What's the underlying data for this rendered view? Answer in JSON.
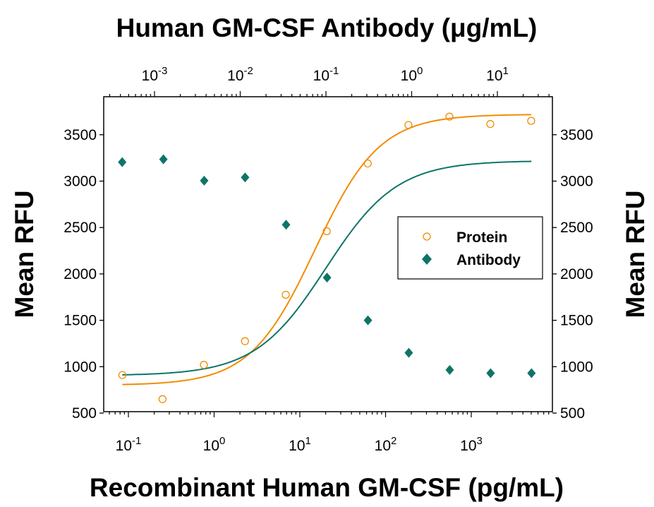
{
  "chart_data": {
    "type": "scatter",
    "title": "Human GM-CSF Antibody (μg/mL)",
    "xlabel": "Recombinant Human GM-CSF (pg/mL)",
    "x2label": "Human GM-CSF Antibody (μg/mL)",
    "ylabel": "Mean RFU",
    "y2label": "Mean RFU",
    "x_scale": "log",
    "xlim": [
      0.05,
      9000
    ],
    "x2lim": [
      0.00018,
      32
    ],
    "ylim": [
      500,
      3850
    ],
    "yticks": [
      500,
      1000,
      1500,
      2000,
      2500,
      3000,
      3500
    ],
    "xticks": [
      {
        "base": "10",
        "exp": "-1",
        "v": 0.1
      },
      {
        "base": "10",
        "exp": "0",
        "v": 1
      },
      {
        "base": "10",
        "exp": "1",
        "v": 10
      },
      {
        "base": "10",
        "exp": "2",
        "v": 100
      },
      {
        "base": "10",
        "exp": "3",
        "v": 1000
      }
    ],
    "x2ticks": [
      {
        "base": "10",
        "exp": "-3",
        "v": 0.001
      },
      {
        "base": "10",
        "exp": "-2",
        "v": 0.01
      },
      {
        "base": "10",
        "exp": "-1",
        "v": 0.1
      },
      {
        "base": "10",
        "exp": "0",
        "v": 1
      },
      {
        "base": "10",
        "exp": "1",
        "v": 10
      }
    ],
    "grid": false,
    "legend_placement": "right-middle",
    "series": [
      {
        "name": "Protein",
        "axis": "bottom",
        "marker": "open-circle",
        "color": "#f28c00",
        "x": [
          0.085,
          0.25,
          0.76,
          2.29,
          6.86,
          20.6,
          62,
          185,
          556,
          1667,
          5000
        ],
        "y": [
          910,
          650,
          1020,
          1275,
          1775,
          2460,
          3190,
          3605,
          3695,
          3615,
          3650
        ],
        "fit": {
          "bottom": 800,
          "top": 3720,
          "ec50": 15,
          "hill": 1.15
        }
      },
      {
        "name": "Antibody",
        "axis": "top",
        "marker": "filled-diamond",
        "color": "#0e7468",
        "x": [
          0.00042,
          0.00127,
          0.0038,
          0.0114,
          0.0343,
          0.103,
          0.309,
          0.926,
          2.78,
          8.33,
          25
        ],
        "y": [
          3205,
          3235,
          3005,
          3040,
          2530,
          1960,
          1500,
          1150,
          965,
          930,
          930
        ],
        "fit": {
          "bottom": 905,
          "top": 3220,
          "ec50": 0.1,
          "hill": 1.05
        }
      }
    ]
  }
}
